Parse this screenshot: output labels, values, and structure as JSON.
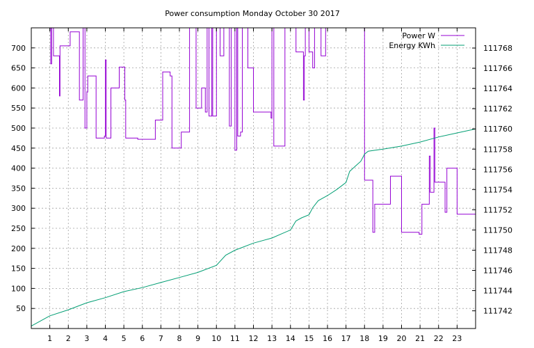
{
  "chart_data": {
    "type": "line",
    "title": "Power consumption Monday October 30 2017",
    "x_ticks": [
      "1",
      "2",
      "3",
      "4",
      "5",
      "6",
      "7",
      "8",
      "9",
      "10",
      "11",
      "12",
      "13",
      "14",
      "15",
      "16",
      "17",
      "18",
      "19",
      "20",
      "21",
      "22",
      "23"
    ],
    "xlim": [
      0,
      24
    ],
    "ylim_left": [
      0,
      750
    ],
    "y_ticks_left": [
      "50",
      "100",
      "150",
      "200",
      "250",
      "300",
      "350",
      "400",
      "450",
      "500",
      "550",
      "600",
      "650",
      "700"
    ],
    "ylim_right": [
      111740.25,
      111770.0
    ],
    "y_ticks_right": [
      "111742",
      "111744",
      "111746",
      "111748",
      "111750",
      "111752",
      "111754",
      "111756",
      "111758",
      "111760",
      "111762",
      "111764",
      "111766",
      "111768"
    ],
    "grid": true,
    "legend_position": "top-right",
    "colors": {
      "power": "#9400d3",
      "energy": "#009e73"
    },
    "series": [
      {
        "name": "Power W",
        "axis": "left",
        "step": true,
        "points": [
          [
            0.0,
            760
          ],
          [
            0.95,
            760
          ],
          [
            1.05,
            660
          ],
          [
            1.1,
            760
          ],
          [
            1.2,
            680
          ],
          [
            1.45,
            680
          ],
          [
            1.52,
            580
          ],
          [
            1.55,
            705
          ],
          [
            1.9,
            705
          ],
          [
            2.1,
            740
          ],
          [
            2.5,
            740
          ],
          [
            2.6,
            570
          ],
          [
            2.8,
            760
          ],
          [
            2.9,
            500
          ],
          [
            3.0,
            590
          ],
          [
            3.05,
            630
          ],
          [
            3.45,
            630
          ],
          [
            3.5,
            475
          ],
          [
            3.9,
            475
          ],
          [
            3.95,
            480
          ],
          [
            4.0,
            670
          ],
          [
            4.05,
            475
          ],
          [
            4.25,
            475
          ],
          [
            4.3,
            600
          ],
          [
            4.7,
            600
          ],
          [
            4.75,
            652
          ],
          [
            5.0,
            652
          ],
          [
            5.05,
            570
          ],
          [
            5.1,
            475
          ],
          [
            5.7,
            475
          ],
          [
            5.75,
            472
          ],
          [
            6.65,
            472
          ],
          [
            6.7,
            520
          ],
          [
            7.0,
            520
          ],
          [
            7.1,
            640
          ],
          [
            7.4,
            640
          ],
          [
            7.5,
            630
          ],
          [
            7.6,
            450
          ],
          [
            8.05,
            450
          ],
          [
            8.1,
            490
          ],
          [
            8.5,
            490
          ],
          [
            8.55,
            760
          ],
          [
            8.8,
            760
          ],
          [
            8.9,
            550
          ],
          [
            9.2,
            600
          ],
          [
            9.4,
            540
          ],
          [
            9.5,
            760
          ],
          [
            9.6,
            530
          ],
          [
            9.75,
            760
          ],
          [
            9.8,
            530
          ],
          [
            10.0,
            760
          ],
          [
            10.2,
            680
          ],
          [
            10.4,
            760
          ],
          [
            10.7,
            505
          ],
          [
            10.8,
            760
          ],
          [
            11.0,
            445
          ],
          [
            11.1,
            760
          ],
          [
            11.15,
            480
          ],
          [
            11.3,
            490
          ],
          [
            11.4,
            760
          ],
          [
            11.7,
            650
          ],
          [
            12.0,
            540
          ],
          [
            12.3,
            540
          ],
          [
            12.8,
            540
          ],
          [
            12.95,
            525
          ],
          [
            13.0,
            760
          ],
          [
            13.1,
            455
          ],
          [
            13.6,
            455
          ],
          [
            13.7,
            760
          ],
          [
            14.2,
            760
          ],
          [
            14.3,
            690
          ],
          [
            14.6,
            690
          ],
          [
            14.7,
            570
          ],
          [
            14.75,
            680
          ],
          [
            14.8,
            760
          ],
          [
            15.0,
            690
          ],
          [
            15.2,
            650
          ],
          [
            15.3,
            760
          ],
          [
            15.5,
            760
          ],
          [
            15.65,
            680
          ],
          [
            15.85,
            680
          ],
          [
            15.9,
            760
          ],
          [
            17.9,
            760
          ],
          [
            18.0,
            370
          ],
          [
            18.3,
            370
          ],
          [
            18.45,
            240
          ],
          [
            18.55,
            310
          ],
          [
            19.25,
            310
          ],
          [
            19.4,
            380
          ],
          [
            19.9,
            380
          ],
          [
            20.0,
            240
          ],
          [
            20.9,
            240
          ],
          [
            20.95,
            235
          ],
          [
            21.1,
            310
          ],
          [
            21.4,
            310
          ],
          [
            21.5,
            430
          ],
          [
            21.55,
            340
          ],
          [
            21.6,
            340
          ],
          [
            21.75,
            500
          ],
          [
            21.8,
            365
          ],
          [
            22.3,
            365
          ],
          [
            22.35,
            290
          ],
          [
            22.45,
            400
          ],
          [
            22.95,
            400
          ],
          [
            23.0,
            285
          ],
          [
            23.95,
            285
          ],
          [
            24.0,
            385
          ]
        ]
      },
      {
        "name": "Energy KWh",
        "axis": "right",
        "step": false,
        "points": [
          [
            0.0,
            111740.5
          ],
          [
            1.0,
            111741.5
          ],
          [
            2.0,
            111742.1
          ],
          [
            3.0,
            111742.8
          ],
          [
            4.0,
            111743.3
          ],
          [
            5.0,
            111743.9
          ],
          [
            6.0,
            111744.3
          ],
          [
            7.0,
            111744.8
          ],
          [
            8.0,
            111745.3
          ],
          [
            9.0,
            111745.8
          ],
          [
            10.0,
            111746.5
          ],
          [
            10.5,
            111747.5
          ],
          [
            11.0,
            111748.0
          ],
          [
            12.0,
            111748.7
          ],
          [
            13.0,
            111749.2
          ],
          [
            13.5,
            111749.6
          ],
          [
            14.0,
            111750.0
          ],
          [
            14.3,
            111750.9
          ],
          [
            14.6,
            111751.2
          ],
          [
            15.0,
            111751.5
          ],
          [
            15.2,
            111752.2
          ],
          [
            15.5,
            111752.9
          ],
          [
            16.0,
            111753.4
          ],
          [
            16.5,
            111754.0
          ],
          [
            17.0,
            111754.7
          ],
          [
            17.2,
            111755.8
          ],
          [
            17.5,
            111756.3
          ],
          [
            17.8,
            111756.8
          ],
          [
            18.0,
            111757.5
          ],
          [
            18.2,
            111757.8
          ],
          [
            19.0,
            111758.0
          ],
          [
            20.0,
            111758.3
          ],
          [
            21.0,
            111758.7
          ],
          [
            22.0,
            111759.2
          ],
          [
            23.0,
            111759.6
          ],
          [
            24.0,
            111760.0
          ]
        ]
      }
    ]
  }
}
